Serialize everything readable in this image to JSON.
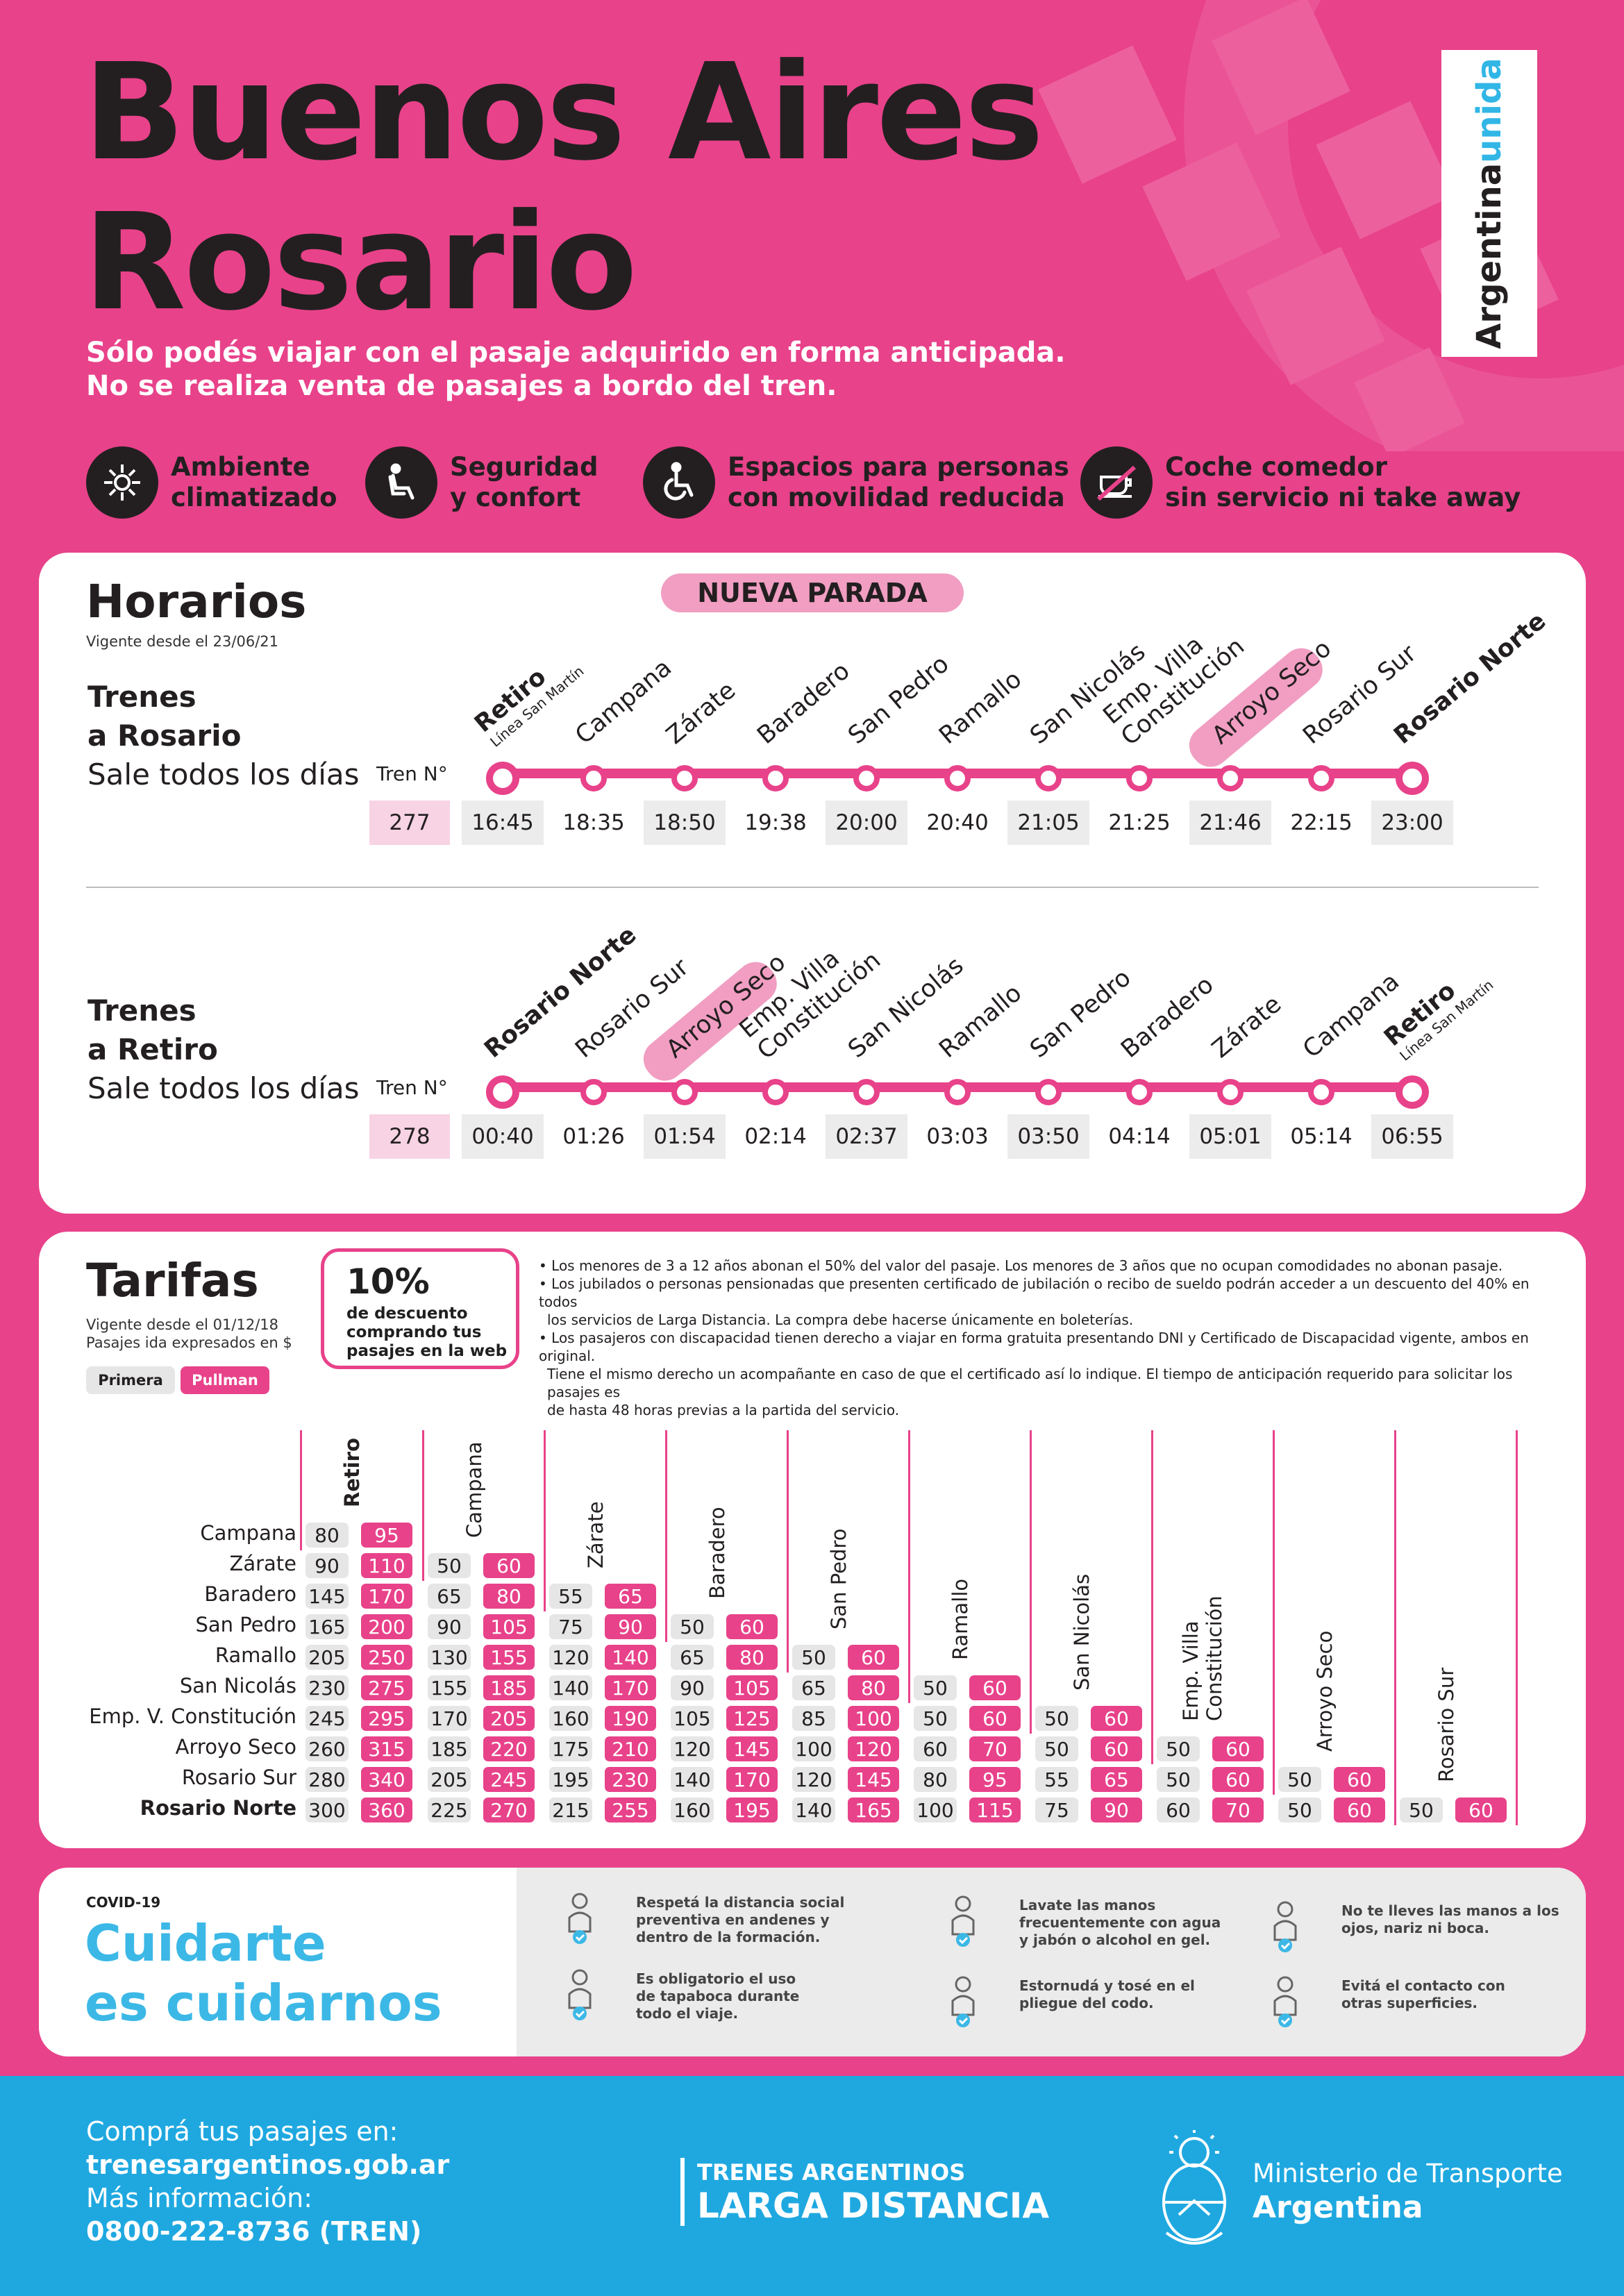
{
  "header": {
    "title_line1": "Buenos Aires",
    "title_line2": "Rosario",
    "subtitle_line1": "Sólo podés viajar con el pasaje adquirido en forma anticipada.",
    "subtitle_line2": "No se realiza venta de pasajes a bordo del tren.",
    "badge_part1": "Argentina",
    "badge_part2": "unida"
  },
  "features": [
    {
      "icon": "air-conditioning-icon",
      "line1": "Ambiente",
      "line2": "climatizado"
    },
    {
      "icon": "seat-icon",
      "line1": "Seguridad",
      "line2": "y confort"
    },
    {
      "icon": "wheelchair-icon",
      "line1": "Espacios para personas",
      "line2": "con movilidad reducida"
    },
    {
      "icon": "no-dining-icon",
      "line1": "Coche comedor",
      "line2": "sin servicio ni take away"
    }
  ],
  "horarios": {
    "title": "Horarios",
    "vigente": "Vigente desde el 23/06/21",
    "nueva_parada": "NUEVA PARADA",
    "tren_label": "Tren N°",
    "to_rosario": {
      "line1": "Trenes",
      "line2": "a Rosario",
      "line3": "Sale todos los días",
      "number": "277",
      "stations": [
        "Retiro",
        "Campana",
        "Zárate",
        "Baradero",
        "San Pedro",
        "Ramallo",
        "San Nicolás",
        "Emp. Villa",
        "Arroyo Seco",
        "Rosario Sur",
        "Rosario Norte"
      ],
      "station_extra": {
        "retiro_sub": "Línea San Martín",
        "emp_line2": "Constitución"
      },
      "times": [
        "16:45",
        "18:35",
        "18:50",
        "19:38",
        "20:00",
        "20:40",
        "21:05",
        "21:25",
        "21:46",
        "22:15",
        "23:00"
      ]
    },
    "to_retiro": {
      "line1": "Trenes",
      "line2": "a Retiro",
      "line3": "Sale todos los días",
      "number": "278",
      "stations": [
        "Rosario Norte",
        "Rosario Sur",
        "Arroyo Seco",
        "Emp. Villa",
        "San Nicolás",
        "Ramallo",
        "San Pedro",
        "Baradero",
        "Zárate",
        "Campana",
        "Retiro"
      ],
      "station_extra": {
        "retiro_sub": "Línea San Martín",
        "emp_line2": "Constitución"
      },
      "times": [
        "00:40",
        "01:26",
        "01:54",
        "02:14",
        "02:37",
        "03:03",
        "03:50",
        "04:14",
        "05:01",
        "05:14",
        "06:55"
      ]
    }
  },
  "tarifas": {
    "title": "Tarifas",
    "vigente": "Vigente desde el 01/12/18",
    "vigente2": "Pasajes ida expresados en $",
    "tag_primera": "Primera",
    "tag_pullman": "Pullman",
    "discount_big": "10%",
    "discount_l1": "de descuento",
    "discount_l2": "comprando tus",
    "discount_l3": "pasajes en la web",
    "notes": [
      "• Los menores de 3 a 12 años abonan el 50% del valor del pasaje. Los menores de 3 años que no ocupan comodidades no abonan pasaje.",
      "• Los jubilados o personas pensionadas que presenten certificado de jubilación o recibo de sueldo podrán acceder a un descuento del 40% en todos",
      "los servicios de Larga Distancia. La compra debe hacerse únicamente en boleterías.",
      "• Los pasajeros con discapacidad tienen derecho a viajar en forma gratuita presentando DNI y Certificado de Discapacidad vigente, ambos en original.",
      "Tiene el mismo derecho un acompañante en caso de que el certificado así lo indique. El tiempo de anticipación requerido para solicitar los pasajes es",
      "de hasta 48 horas previas a la partida del servicio."
    ],
    "columns": [
      "Retiro",
      "Campana",
      "Zárate",
      "Baradero",
      "San Pedro",
      "Ramallo",
      "San Nicolás",
      "Emp. Villa",
      "Arroyo Seco",
      "Rosario Sur"
    ],
    "col_extra": "Constitución",
    "rows": [
      "Campana",
      "Zárate",
      "Baradero",
      "San Pedro",
      "Ramallo",
      "San Nicolás",
      "Emp. V. Constitución",
      "Arroyo Seco",
      "Rosario Sur",
      "Rosario Norte"
    ],
    "fares": [
      [
        [
          "80",
          "95"
        ]
      ],
      [
        [
          "90",
          "110"
        ],
        [
          "50",
          "60"
        ]
      ],
      [
        [
          "145",
          "170"
        ],
        [
          "65",
          "80"
        ],
        [
          "55",
          "65"
        ]
      ],
      [
        [
          "165",
          "200"
        ],
        [
          "90",
          "105"
        ],
        [
          "75",
          "90"
        ],
        [
          "50",
          "60"
        ]
      ],
      [
        [
          "205",
          "250"
        ],
        [
          "130",
          "155"
        ],
        [
          "120",
          "140"
        ],
        [
          "65",
          "80"
        ],
        [
          "50",
          "60"
        ]
      ],
      [
        [
          "230",
          "275"
        ],
        [
          "155",
          "185"
        ],
        [
          "140",
          "170"
        ],
        [
          "90",
          "105"
        ],
        [
          "65",
          "80"
        ],
        [
          "50",
          "60"
        ]
      ],
      [
        [
          "245",
          "295"
        ],
        [
          "170",
          "205"
        ],
        [
          "160",
          "190"
        ],
        [
          "105",
          "125"
        ],
        [
          "85",
          "100"
        ],
        [
          "50",
          "60"
        ],
        [
          "50",
          "60"
        ]
      ],
      [
        [
          "260",
          "315"
        ],
        [
          "185",
          "220"
        ],
        [
          "175",
          "210"
        ],
        [
          "120",
          "145"
        ],
        [
          "100",
          "120"
        ],
        [
          "60",
          "70"
        ],
        [
          "50",
          "60"
        ],
        [
          "50",
          "60"
        ]
      ],
      [
        [
          "280",
          "340"
        ],
        [
          "205",
          "245"
        ],
        [
          "195",
          "230"
        ],
        [
          "140",
          "170"
        ],
        [
          "120",
          "145"
        ],
        [
          "80",
          "95"
        ],
        [
          "55",
          "65"
        ],
        [
          "50",
          "60"
        ],
        [
          "50",
          "60"
        ]
      ],
      [
        [
          "300",
          "360"
        ],
        [
          "225",
          "270"
        ],
        [
          "215",
          "255"
        ],
        [
          "160",
          "195"
        ],
        [
          "140",
          "165"
        ],
        [
          "100",
          "115"
        ],
        [
          "75",
          "90"
        ],
        [
          "60",
          "70"
        ],
        [
          "50",
          "60"
        ],
        [
          "50",
          "60"
        ]
      ]
    ]
  },
  "covid": {
    "tag": "COVID-19",
    "title1": "Cuidarte",
    "title2": "es cuidarnos",
    "tips": [
      {
        "icon": "distance-icon",
        "l1": "Respetá la distancia social",
        "l2": "preventiva en andenes y",
        "l3": "dentro de la formación."
      },
      {
        "icon": "mask-icon",
        "l1": "Es obligatorio el uso",
        "l2": "de tapaboca durante",
        "l3": "todo el viaje."
      },
      {
        "icon": "handwash-icon",
        "l1": "Lavate las manos",
        "l2": "frecuentemente con agua",
        "l3": "y jabón o alcohol en gel."
      },
      {
        "icon": "sneeze-icon",
        "l1": "Estornudá y tosé en el",
        "l2": "pliegue del codo.",
        "l3": ""
      },
      {
        "icon": "face-touch-icon",
        "l1": "No te lleves las manos a los",
        "l2": "ojos, nariz ni boca.",
        "l3": ""
      },
      {
        "icon": "no-contact-icon",
        "l1": "Evitá el contacto con",
        "l2": "otras superficies.",
        "l3": ""
      }
    ]
  },
  "footer": {
    "buy_label": "Comprá tus pasajes en:",
    "buy_url": "trenesargentinos.gob.ar",
    "info_label": "Más información:",
    "phone": "0800-222-8736 (TREN)",
    "brand1": "TRENES ARGENTINOS",
    "brand2": "LARGA DISTANCIA",
    "ministry1": "Ministerio de Transporte",
    "ministry2": "Argentina"
  },
  "colors": {
    "pink": "#e8428a",
    "light_pink": "#f19ec2",
    "blue": "#1fa8e0",
    "dark": "#231f20"
  }
}
